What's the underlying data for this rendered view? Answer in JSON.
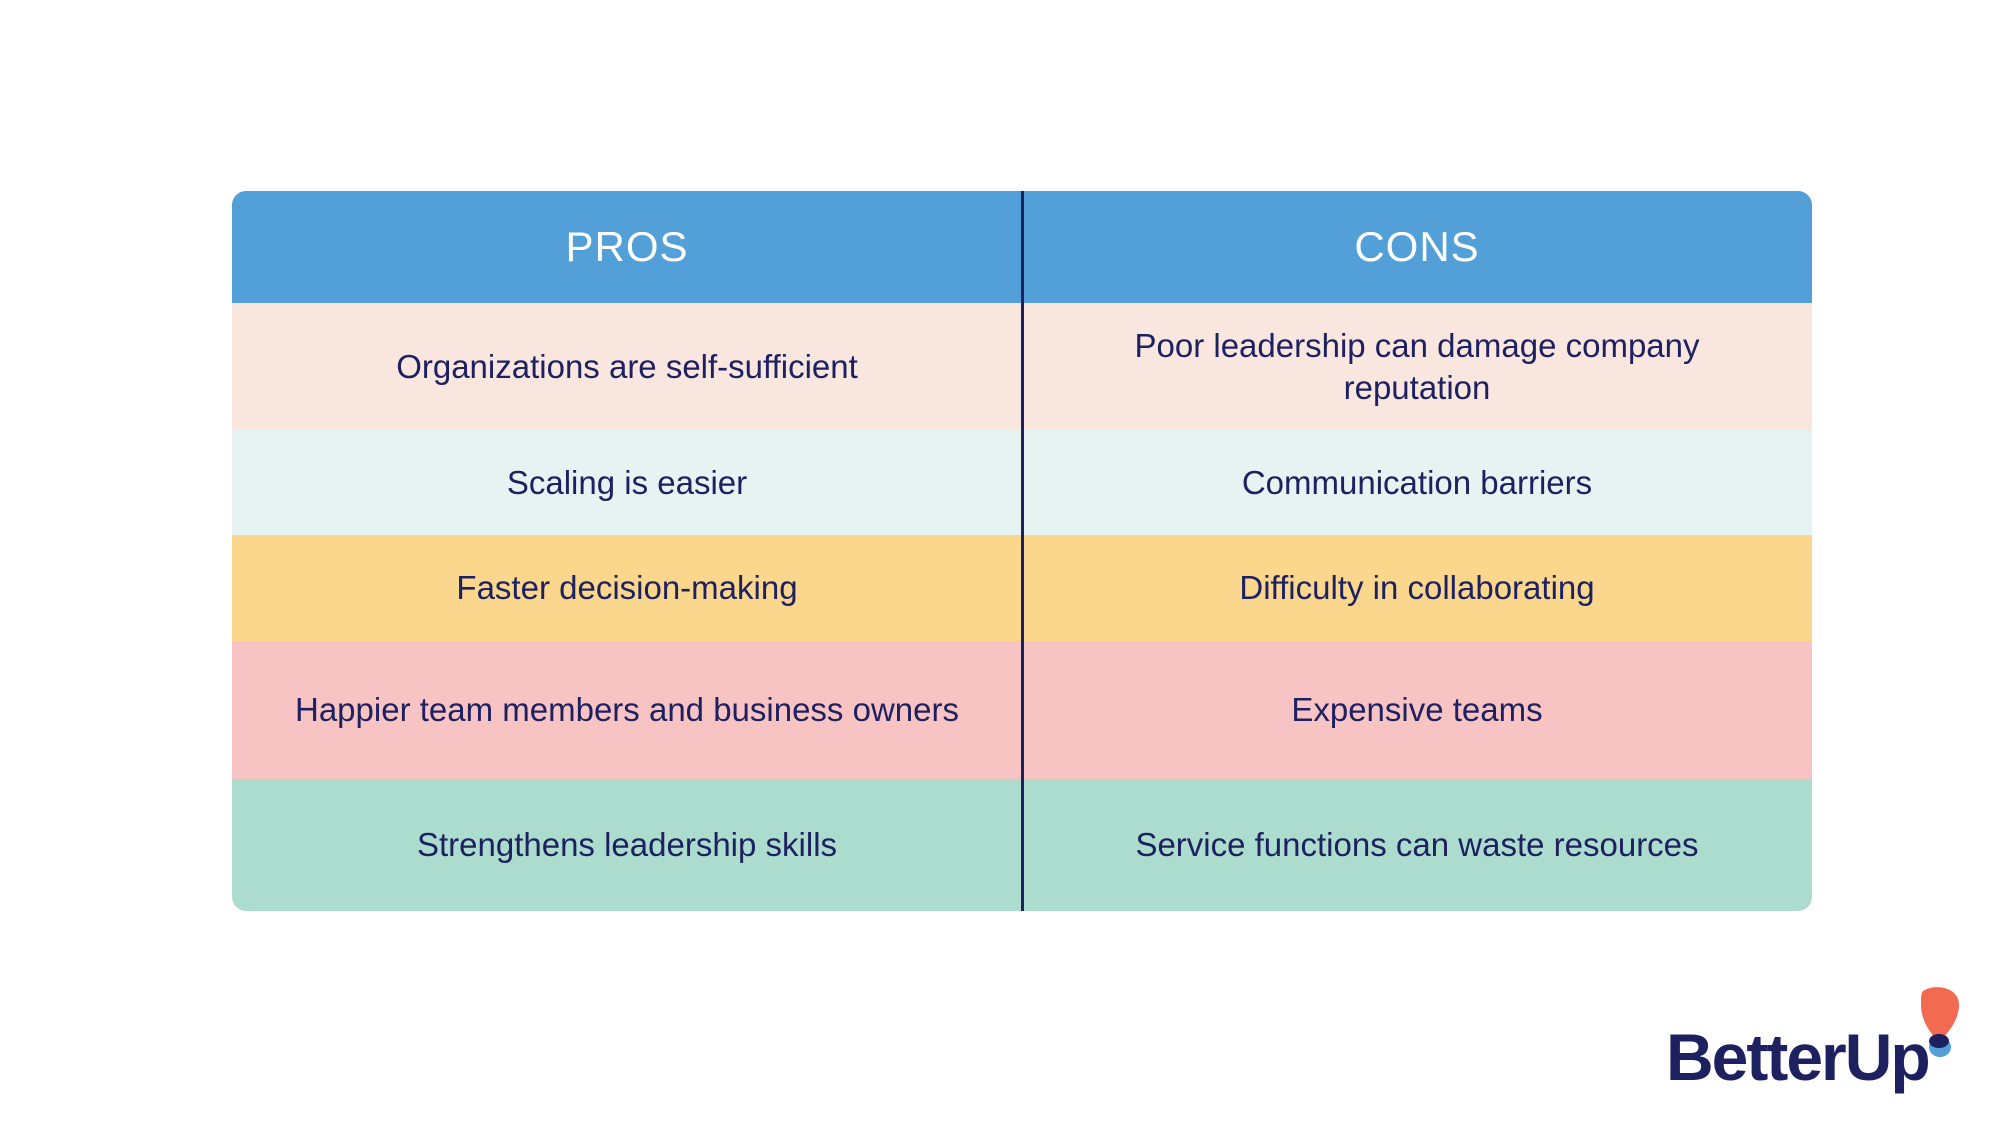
{
  "header": {
    "pros": "PROS",
    "cons": "CONS"
  },
  "rows": [
    {
      "pro": "Organizations are self-sufficient",
      "con": "Poor leadership can damage company reputation",
      "color": "#f9e6df"
    },
    {
      "pro": "Scaling is easier",
      "con": "Communication barriers",
      "color": "#e7f3f2"
    },
    {
      "pro": "Faster decision-making",
      "con": "Difficulty in collaborating",
      "color": "#fbd68d"
    },
    {
      "pro": "Happier team members and business owners",
      "con": "Expensive teams",
      "color": "#f8c4c3"
    },
    {
      "pro": "Strengthens leadership skills",
      "con": "Service functions can waste resources",
      "color": "#acdccd"
    }
  ],
  "colors": {
    "header": "#539fd7",
    "text": "#1e2160",
    "logo_orange": "#f26a50",
    "logo_blue": "#539fd7"
  },
  "logo": {
    "text": "BetterUp"
  }
}
